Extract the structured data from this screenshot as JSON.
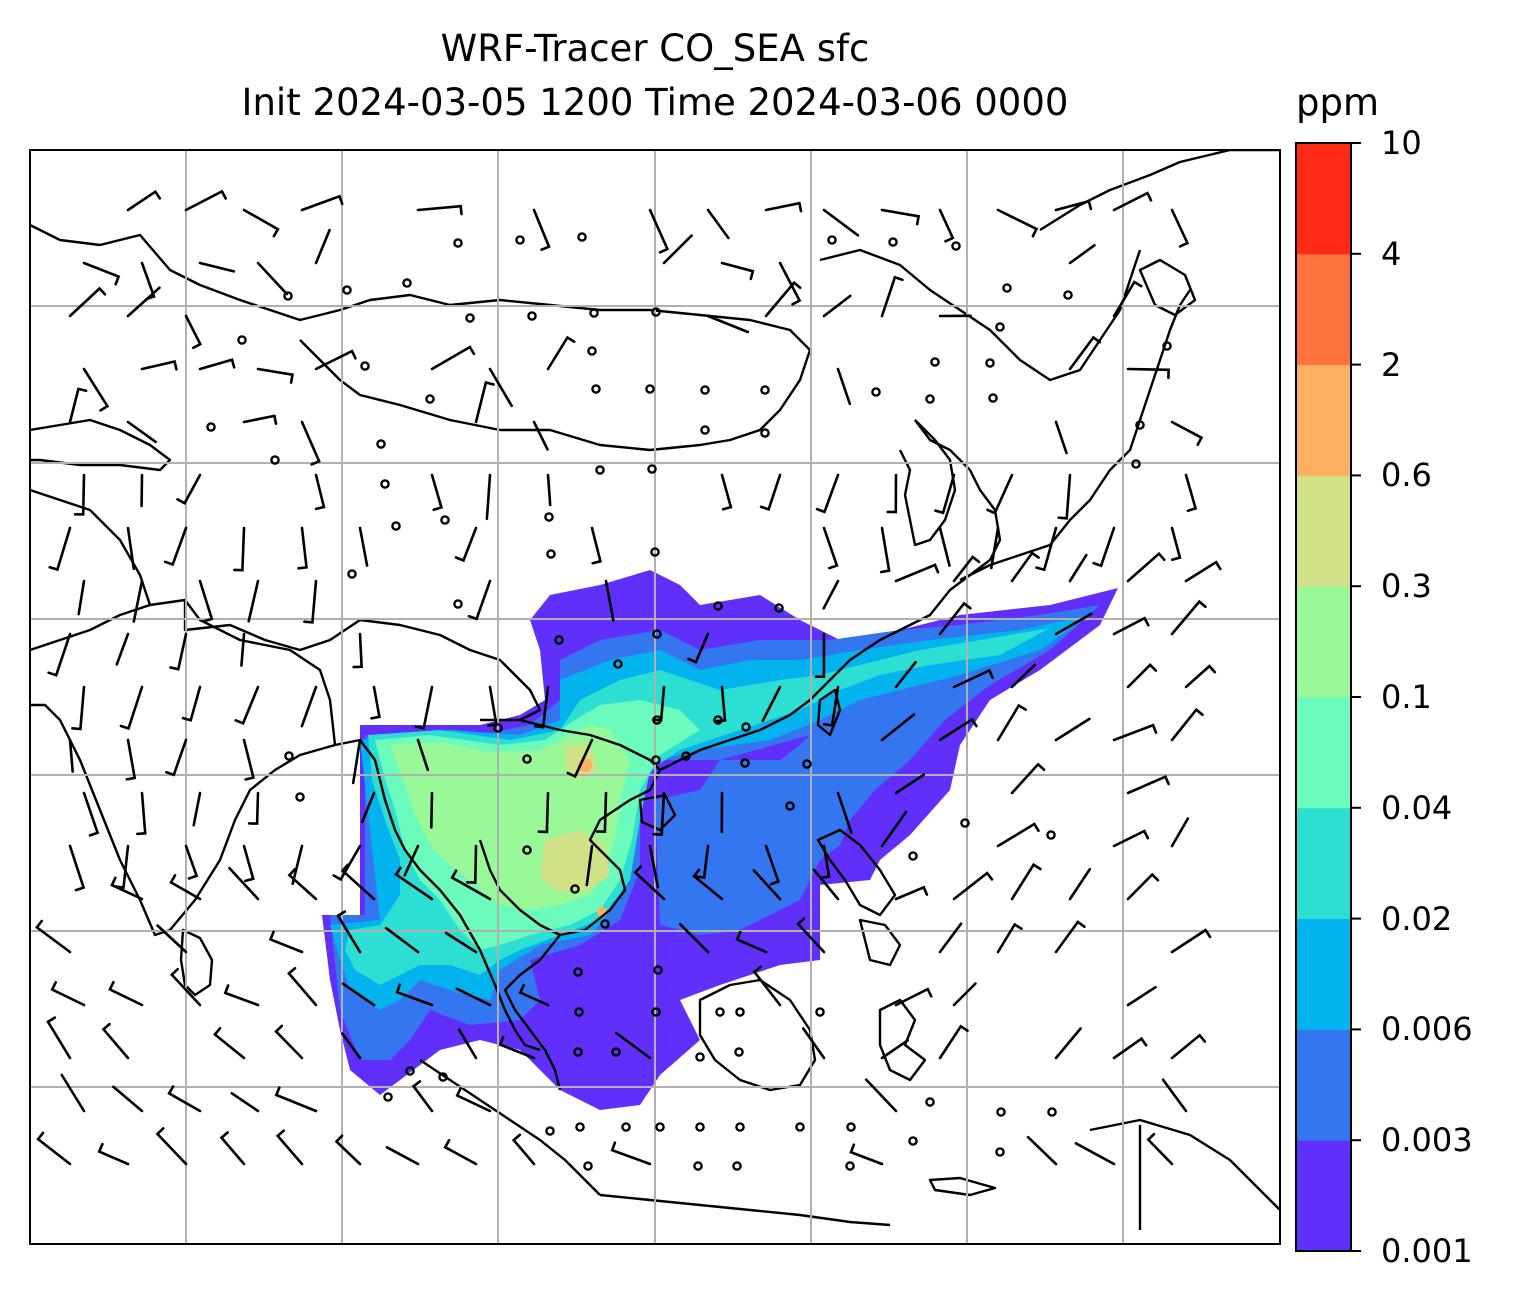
{
  "title_line1": "WRF-Tracer CO_SEA sfc",
  "title_line2": "Init 2024-03-05 1200 Time 2024-03-06 0000",
  "colorbar": {
    "unit": "ppm",
    "levels": [
      "0.001",
      "0.003",
      "0.006",
      "0.02",
      "0.04",
      "0.1",
      "0.3",
      "0.6",
      "2",
      "4",
      "10"
    ],
    "colors": [
      "#6030fa",
      "#3476f0",
      "#02b3ee",
      "#2cdfd2",
      "#6afbbd",
      "#99f898",
      "#d0e188",
      "#fbb161",
      "#fd723f",
      "#ff2a16"
    ]
  },
  "map": {
    "tracer_field": "CO_SEA",
    "level": "surface",
    "overlay": "wind barbs",
    "gridlines": true,
    "coastlines": true
  }
}
